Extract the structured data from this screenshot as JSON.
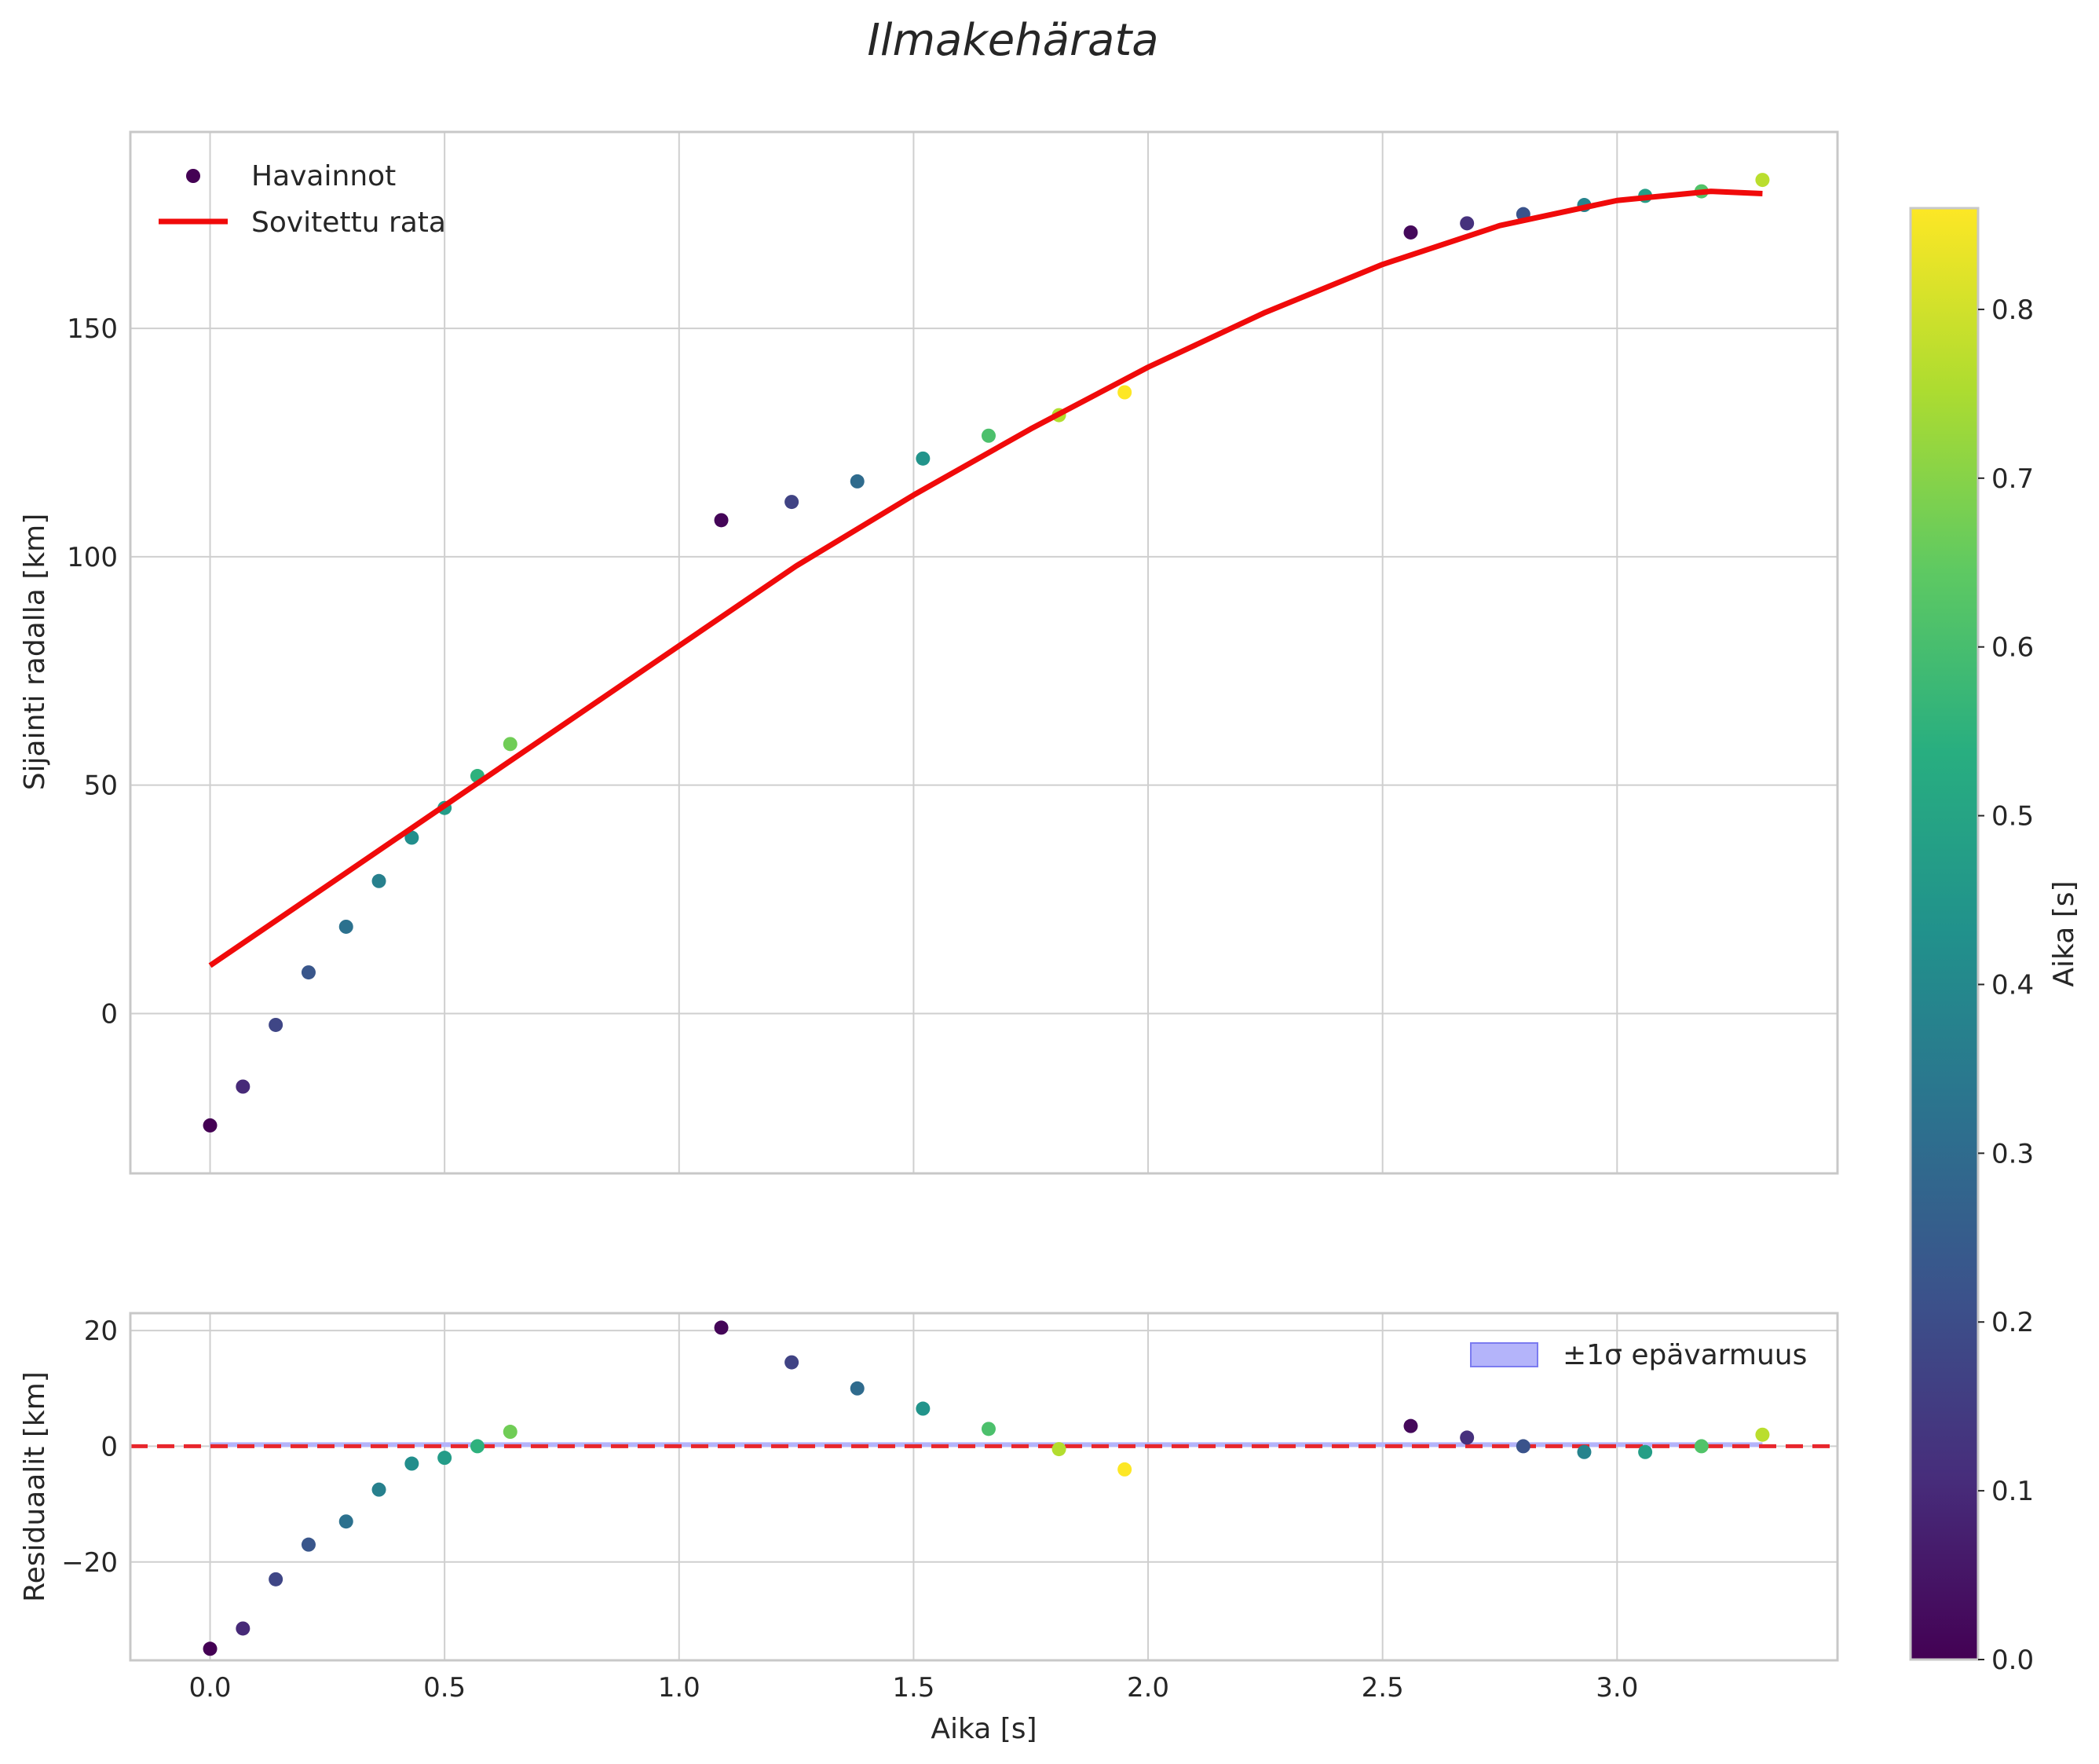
{
  "chart_data": {
    "type": "scatter",
    "title": "Ilmakehärata",
    "x": [
      0.0,
      0.07,
      0.14,
      0.21,
      0.29,
      0.36,
      0.43,
      0.5,
      0.57,
      0.64,
      1.09,
      1.24,
      1.38,
      1.52,
      1.66,
      1.81,
      1.95,
      2.56,
      2.68,
      2.8,
      2.93,
      3.06,
      3.18,
      3.31
    ],
    "color_values": [
      0.0,
      0.1,
      0.18,
      0.23,
      0.32,
      0.37,
      0.42,
      0.47,
      0.55,
      0.67,
      0.01,
      0.17,
      0.3,
      0.44,
      0.61,
      0.76,
      0.86,
      0.02,
      0.12,
      0.22,
      0.38,
      0.48,
      0.62,
      0.77
    ],
    "top": {
      "ylabel": "Sijainti radalla [km]",
      "ylim": [
        -35,
        193
      ],
      "yticks": [
        "0",
        "50",
        "100",
        "150"
      ],
      "ytick_values": [
        0,
        50,
        100,
        150
      ],
      "observations": [
        -24.5,
        -16,
        -2.5,
        9,
        19,
        29,
        38.5,
        45,
        52,
        59,
        108,
        112,
        116.5,
        121.5,
        126.5,
        131,
        136,
        171,
        173,
        175,
        177,
        179,
        180,
        182.5
      ],
      "fit": {
        "x": [
          0.0,
          0.25,
          0.5,
          0.75,
          1.0,
          1.25,
          1.5,
          1.75,
          2.0,
          2.25,
          2.5,
          2.75,
          3.0,
          3.2,
          3.31
        ],
        "y": [
          10.5,
          28,
          45.5,
          63,
          80.5,
          98,
          113.5,
          128,
          141.5,
          153.5,
          164,
          172.5,
          178,
          180,
          179.5
        ]
      },
      "legend": {
        "observations_label": "Havainnot",
        "fit_label": "Sovitettu rata"
      }
    },
    "bottom": {
      "ylabel": "Residuaalit [km]",
      "xlabel": "Aika [s]",
      "ylim": [
        -37,
        23
      ],
      "yticks": [
        "−20",
        "0",
        "20"
      ],
      "ytick_values": [
        -20,
        0,
        20
      ],
      "residuals": [
        -35,
        -31.5,
        -23,
        -17,
        -13,
        -7.5,
        -3,
        -2,
        0,
        2.5,
        20.5,
        14.5,
        10,
        6.5,
        3,
        -0.5,
        -4,
        3.5,
        1.5,
        0,
        -1,
        -1,
        0,
        2
      ],
      "legend_label": "±1σ epävarmuus",
      "zero_line": 0
    },
    "xlim": [
      -0.17,
      3.47
    ],
    "xticks": [
      "0.0",
      "0.5",
      "1.0",
      "1.5",
      "2.0",
      "2.5",
      "3.0"
    ],
    "xtick_values": [
      0,
      0.5,
      1.0,
      1.5,
      2.0,
      2.5,
      3.0
    ],
    "colorbar": {
      "label": "Aika [s]",
      "range": [
        0,
        0.86
      ],
      "ticks": [
        "0.0",
        "0.1",
        "0.2",
        "0.3",
        "0.4",
        "0.5",
        "0.6",
        "0.7",
        "0.8"
      ],
      "tick_values": [
        0,
        0.1,
        0.2,
        0.3,
        0.4,
        0.5,
        0.6,
        0.7,
        0.8
      ],
      "colormap": "viridis"
    },
    "colors": {
      "fit_line": "#f00a0a",
      "zero_line": "#e8262c",
      "band": "#b4b4fa",
      "band_edge": "#7b7bf0"
    }
  }
}
